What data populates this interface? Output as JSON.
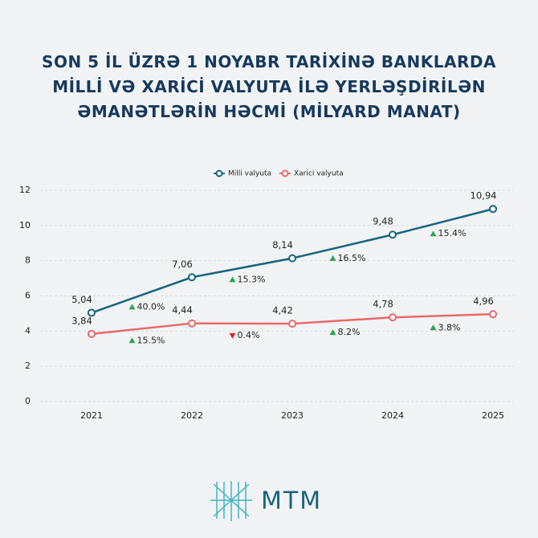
{
  "chart_data": {
    "type": "line",
    "title": "SON 5 İL ÜZRƏ 1 NOYABR TARİXİNƏ BANKLARDA MİLLİ VƏ XARİCİ VALYUTA İLƏ YERLƏŞDİRİLƏN ƏMANƏTLƏRİN HƏCMİ (MİLYARD MANAT)",
    "categories": [
      "2021",
      "2022",
      "2023",
      "2024",
      "2025"
    ],
    "series": [
      {
        "name": "Milli valyuta",
        "color": "#17657f",
        "values": [
          5.04,
          7.06,
          8.14,
          9.48,
          10.94
        ],
        "value_labels": [
          "5,04",
          "7,06",
          "8,14",
          "9,48",
          "10,94"
        ],
        "changes": [
          {
            "label": "40.0%",
            "direction": "up"
          },
          {
            "label": "15.3%",
            "direction": "up"
          },
          {
            "label": "16.5%",
            "direction": "up"
          },
          {
            "label": "15.4%",
            "direction": "up"
          }
        ]
      },
      {
        "name": "Xarici valyuta",
        "color": "#e8696b",
        "values": [
          3.84,
          4.44,
          4.42,
          4.78,
          4.96
        ],
        "value_labels": [
          "3,84",
          "4,44",
          "4,42",
          "4,78",
          "4,96"
        ],
        "changes": [
          {
            "label": "15.5%",
            "direction": "up"
          },
          {
            "label": "0.4%",
            "direction": "down"
          },
          {
            "label": "8.2%",
            "direction": "up"
          },
          {
            "label": "3.8%",
            "direction": "up"
          }
        ]
      }
    ],
    "ylim": [
      0,
      12
    ],
    "yticks": [
      0,
      2,
      4,
      6,
      8,
      10,
      12
    ],
    "grid": true,
    "legend": "top"
  },
  "logo_text": "MTM"
}
